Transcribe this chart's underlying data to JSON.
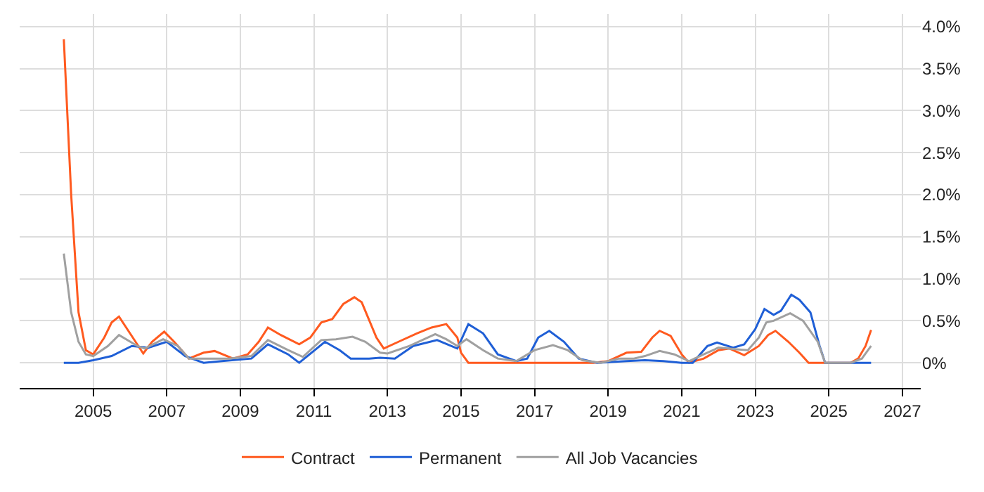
{
  "chart_data": {
    "type": "line",
    "xlim": [
      2003,
      2027.5
    ],
    "xticks": [
      2005,
      2007,
      2009,
      2011,
      2013,
      2015,
      2017,
      2019,
      2021,
      2023,
      2025,
      2027
    ],
    "ylim": [
      -0.3,
      4.15
    ],
    "yticks": [
      {
        "value": 0,
        "label": "0%"
      },
      {
        "value": 0.5,
        "label": "0.5%"
      },
      {
        "value": 1,
        "label": "1.0%"
      },
      {
        "value": 1.5,
        "label": "1.5%"
      },
      {
        "value": 2,
        "label": "2.0%"
      },
      {
        "value": 2.5,
        "label": "2.5%"
      },
      {
        "value": 3,
        "label": "3.0%"
      },
      {
        "value": 3.5,
        "label": "3.5%"
      },
      {
        "value": 4,
        "label": "4.0%"
      }
    ],
    "grid": true,
    "legend": "bottom",
    "marker": "none",
    "line_style": "solid",
    "series": [
      {
        "name": "Contract",
        "color": "#ff5a1f",
        "x": [
          2004.2,
          2004.4,
          2004.6,
          2004.8,
          2005.0,
          2005.3,
          2005.5,
          2005.7,
          2006.0,
          2006.36,
          2006.6,
          2006.93,
          2007.2,
          2007.6,
          2008.0,
          2008.3,
          2008.8,
          2009.2,
          2009.5,
          2009.75,
          2010.1,
          2010.6,
          2010.9,
          2011.2,
          2011.5,
          2011.8,
          2012.1,
          2012.3,
          2012.7,
          2012.9,
          2013.3,
          2013.8,
          2014.2,
          2014.6,
          2014.9,
          2015.0,
          2015.2,
          2016.5,
          2018.6,
          2019.0,
          2019.5,
          2019.9,
          2020.2,
          2020.4,
          2020.7,
          2021.0,
          2021.2,
          2021.6,
          2022.0,
          2022.3,
          2022.7,
          2023.1,
          2023.35,
          2023.55,
          2023.9,
          2024.2,
          2024.45,
          2025.0,
          2025.6,
          2025.8,
          2026.0,
          2026.15
        ],
        "values": [
          3.85,
          2.0,
          0.6,
          0.15,
          0.1,
          0.3,
          0.48,
          0.55,
          0.35,
          0.11,
          0.25,
          0.37,
          0.25,
          0.05,
          0.12,
          0.14,
          0.05,
          0.1,
          0.25,
          0.42,
          0.33,
          0.22,
          0.3,
          0.48,
          0.52,
          0.7,
          0.78,
          0.72,
          0.3,
          0.17,
          0.25,
          0.35,
          0.42,
          0.46,
          0.3,
          0.12,
          0.0,
          0.0,
          0.0,
          0.02,
          0.12,
          0.13,
          0.3,
          0.38,
          0.32,
          0.1,
          0.0,
          0.05,
          0.15,
          0.17,
          0.09,
          0.2,
          0.33,
          0.38,
          0.25,
          0.12,
          0.0,
          0.0,
          0.0,
          0.05,
          0.2,
          0.39
        ]
      },
      {
        "name": "Permanent",
        "color": "#1f5fd6",
        "x": [
          2004.2,
          2004.6,
          2005.0,
          2005.5,
          2006.05,
          2006.5,
          2007.0,
          2007.5,
          2008.0,
          2008.5,
          2009.3,
          2009.75,
          2010.3,
          2010.6,
          2011.3,
          2011.7,
          2012.0,
          2012.5,
          2012.8,
          2013.2,
          2013.7,
          2014.35,
          2014.9,
          2015.2,
          2015.6,
          2016.0,
          2016.5,
          2016.8,
          2017.1,
          2017.4,
          2017.8,
          2018.2,
          2018.7,
          2019.5,
          2020.0,
          2020.5,
          2021.0,
          2021.3,
          2021.7,
          2021.96,
          2022.4,
          2022.7,
          2023.0,
          2023.25,
          2023.5,
          2023.7,
          2023.98,
          2024.2,
          2024.5,
          2024.75,
          2024.9,
          2026.15
        ],
        "values": [
          0.0,
          0.0,
          0.03,
          0.08,
          0.2,
          0.18,
          0.25,
          0.08,
          0.0,
          0.02,
          0.05,
          0.22,
          0.1,
          0.0,
          0.25,
          0.15,
          0.05,
          0.05,
          0.06,
          0.05,
          0.2,
          0.27,
          0.17,
          0.46,
          0.35,
          0.1,
          0.02,
          0.05,
          0.3,
          0.38,
          0.25,
          0.05,
          0.0,
          0.02,
          0.03,
          0.02,
          0.0,
          0.0,
          0.2,
          0.24,
          0.18,
          0.22,
          0.4,
          0.64,
          0.57,
          0.62,
          0.81,
          0.75,
          0.6,
          0.2,
          0.0,
          0.0
        ]
      },
      {
        "name": "All Job Vacancies",
        "color": "#a0a0a0",
        "x": [
          2004.2,
          2004.4,
          2004.6,
          2004.8,
          2005.0,
          2005.4,
          2005.7,
          2006.2,
          2006.4,
          2006.9,
          2007.3,
          2007.6,
          2008.0,
          2008.7,
          2009.3,
          2009.75,
          2010.3,
          2010.7,
          2011.2,
          2011.6,
          2012.05,
          2012.4,
          2012.8,
          2013.0,
          2013.6,
          2014.3,
          2014.6,
          2014.9,
          2015.15,
          2015.6,
          2016.0,
          2016.5,
          2017.0,
          2017.5,
          2017.9,
          2018.3,
          2018.8,
          2019.3,
          2019.7,
          2020.0,
          2020.4,
          2020.8,
          2021.2,
          2021.6,
          2022.0,
          2022.5,
          2022.8,
          2023.1,
          2023.3,
          2023.5,
          2023.95,
          2024.3,
          2024.7,
          2024.9,
          2025.6,
          2025.9,
          2026.15
        ],
        "values": [
          1.3,
          0.6,
          0.25,
          0.1,
          0.08,
          0.2,
          0.33,
          0.2,
          0.17,
          0.28,
          0.2,
          0.05,
          0.05,
          0.05,
          0.08,
          0.27,
          0.15,
          0.07,
          0.27,
          0.28,
          0.31,
          0.25,
          0.12,
          0.11,
          0.2,
          0.34,
          0.28,
          0.2,
          0.28,
          0.15,
          0.05,
          0.02,
          0.15,
          0.21,
          0.15,
          0.03,
          0.0,
          0.05,
          0.05,
          0.08,
          0.14,
          0.1,
          0.02,
          0.1,
          0.18,
          0.16,
          0.15,
          0.3,
          0.48,
          0.5,
          0.59,
          0.5,
          0.25,
          0.0,
          0.0,
          0.05,
          0.2
        ]
      }
    ]
  }
}
